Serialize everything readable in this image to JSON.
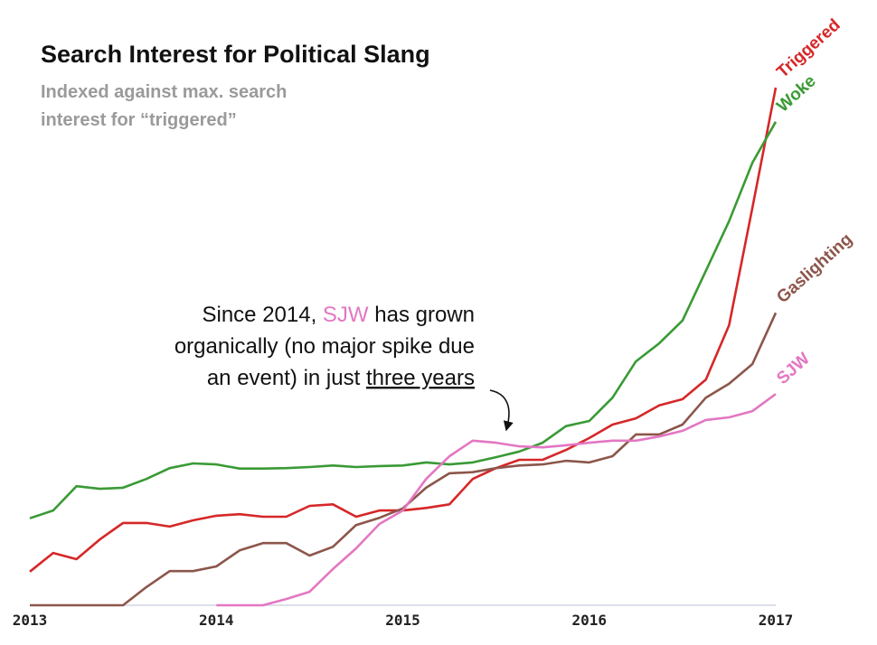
{
  "chart_data": {
    "type": "line",
    "title": "Search Interest for Political Slang",
    "subtitle": [
      "Indexed against max. search",
      "interest for “triggered”"
    ],
    "annotation": [
      [
        "Since 2014, ",
        "SJW",
        " has grown"
      ],
      [
        "organically (no major spike due"
      ],
      [
        "an event) in just ",
        "three years"
      ]
    ],
    "x": [
      2013,
      2013.125,
      2013.25,
      2013.375,
      2013.5,
      2013.625,
      2013.75,
      2013.875,
      2014,
      2014.125,
      2014.25,
      2014.375,
      2014.5,
      2014.625,
      2014.75,
      2014.875,
      2015,
      2015.125,
      2015.25,
      2015.375,
      2015.5,
      2015.625,
      2015.75,
      2015.875,
      2016,
      2016.125,
      2016.25,
      2016.375,
      2016.5,
      2016.625,
      2016.75,
      2016.875,
      2017
    ],
    "series": [
      {
        "name": "Triggered",
        "color": "#d62728",
        "values": [
          6.5,
          10.1,
          8.9,
          12.7,
          15.9,
          15.9,
          15.2,
          16.4,
          17.3,
          17.6,
          17.1,
          17.1,
          19.2,
          19.5,
          17.1,
          18.3,
          18.3,
          18.8,
          19.5,
          24.4,
          26.5,
          28.1,
          28.1,
          30,
          32.3,
          34.9,
          36.1,
          38.6,
          39.8,
          43.6,
          54.1,
          76.8,
          100
        ]
      },
      {
        "name": "Woke",
        "color": "#3a9a35",
        "values": [
          16.8,
          18.3,
          23,
          22.5,
          22.7,
          24.4,
          26.5,
          27.4,
          27.2,
          26.4,
          26.4,
          26.5,
          26.7,
          27,
          26.7,
          26.9,
          27,
          27.6,
          27.2,
          27.6,
          28.6,
          29.7,
          31.4,
          34.6,
          35.6,
          40.1,
          47.1,
          50.6,
          55,
          64.6,
          74.2,
          85.5,
          93.4
        ]
      },
      {
        "name": "Gaslighting",
        "color": "#8c564b",
        "values": [
          0,
          0,
          0,
          0,
          0,
          3.5,
          6.6,
          6.6,
          7.5,
          10.6,
          12,
          12,
          9.6,
          11.3,
          15.5,
          16.9,
          18.7,
          22.7,
          25.5,
          25.7,
          26.5,
          27,
          27.2,
          27.9,
          27.6,
          28.8,
          33,
          33,
          34.9,
          40.1,
          42.8,
          46.6,
          56.5
        ]
      },
      {
        "name": "SJW",
        "color": "#e377c2",
        "values": [
          null,
          null,
          null,
          null,
          null,
          null,
          null,
          null,
          0,
          0,
          0,
          1.2,
          2.6,
          7,
          11,
          15.7,
          18.3,
          24.4,
          28.8,
          31.8,
          31.4,
          30.7,
          30.5,
          30.9,
          31.4,
          31.8,
          31.8,
          32.6,
          33.7,
          35.8,
          36.3,
          37.5,
          40.8
        ]
      }
    ],
    "xlim": [
      2013,
      2017
    ],
    "xticks": [
      2013,
      2014,
      2015,
      2016,
      2017
    ],
    "ylim": [
      0,
      100
    ]
  }
}
